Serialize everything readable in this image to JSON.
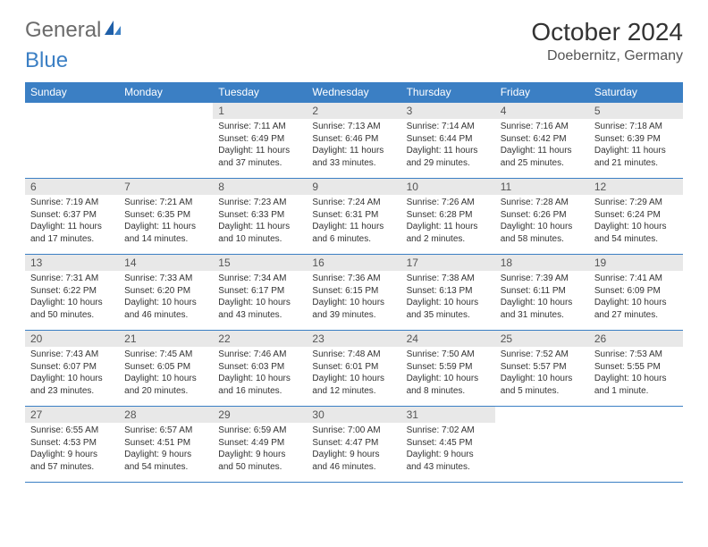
{
  "logo": {
    "text1": "General",
    "text2": "Blue"
  },
  "header": {
    "title": "October 2024",
    "location": "Doebernitz, Germany"
  },
  "colors": {
    "header_bg": "#3b7fc4",
    "header_text": "#ffffff",
    "daynum_bg": "#e8e8e8",
    "border": "#3b7fc4",
    "logo_gray": "#6b6b6b",
    "logo_blue": "#3b7fc4"
  },
  "weekdays": [
    "Sunday",
    "Monday",
    "Tuesday",
    "Wednesday",
    "Thursday",
    "Friday",
    "Saturday"
  ],
  "weeks": [
    [
      {
        "empty": true
      },
      {
        "empty": true
      },
      {
        "num": "1",
        "sunrise": "Sunrise: 7:11 AM",
        "sunset": "Sunset: 6:49 PM",
        "daylight": "Daylight: 11 hours and 37 minutes."
      },
      {
        "num": "2",
        "sunrise": "Sunrise: 7:13 AM",
        "sunset": "Sunset: 6:46 PM",
        "daylight": "Daylight: 11 hours and 33 minutes."
      },
      {
        "num": "3",
        "sunrise": "Sunrise: 7:14 AM",
        "sunset": "Sunset: 6:44 PM",
        "daylight": "Daylight: 11 hours and 29 minutes."
      },
      {
        "num": "4",
        "sunrise": "Sunrise: 7:16 AM",
        "sunset": "Sunset: 6:42 PM",
        "daylight": "Daylight: 11 hours and 25 minutes."
      },
      {
        "num": "5",
        "sunrise": "Sunrise: 7:18 AM",
        "sunset": "Sunset: 6:39 PM",
        "daylight": "Daylight: 11 hours and 21 minutes."
      }
    ],
    [
      {
        "num": "6",
        "sunrise": "Sunrise: 7:19 AM",
        "sunset": "Sunset: 6:37 PM",
        "daylight": "Daylight: 11 hours and 17 minutes."
      },
      {
        "num": "7",
        "sunrise": "Sunrise: 7:21 AM",
        "sunset": "Sunset: 6:35 PM",
        "daylight": "Daylight: 11 hours and 14 minutes."
      },
      {
        "num": "8",
        "sunrise": "Sunrise: 7:23 AM",
        "sunset": "Sunset: 6:33 PM",
        "daylight": "Daylight: 11 hours and 10 minutes."
      },
      {
        "num": "9",
        "sunrise": "Sunrise: 7:24 AM",
        "sunset": "Sunset: 6:31 PM",
        "daylight": "Daylight: 11 hours and 6 minutes."
      },
      {
        "num": "10",
        "sunrise": "Sunrise: 7:26 AM",
        "sunset": "Sunset: 6:28 PM",
        "daylight": "Daylight: 11 hours and 2 minutes."
      },
      {
        "num": "11",
        "sunrise": "Sunrise: 7:28 AM",
        "sunset": "Sunset: 6:26 PM",
        "daylight": "Daylight: 10 hours and 58 minutes."
      },
      {
        "num": "12",
        "sunrise": "Sunrise: 7:29 AM",
        "sunset": "Sunset: 6:24 PM",
        "daylight": "Daylight: 10 hours and 54 minutes."
      }
    ],
    [
      {
        "num": "13",
        "sunrise": "Sunrise: 7:31 AM",
        "sunset": "Sunset: 6:22 PM",
        "daylight": "Daylight: 10 hours and 50 minutes."
      },
      {
        "num": "14",
        "sunrise": "Sunrise: 7:33 AM",
        "sunset": "Sunset: 6:20 PM",
        "daylight": "Daylight: 10 hours and 46 minutes."
      },
      {
        "num": "15",
        "sunrise": "Sunrise: 7:34 AM",
        "sunset": "Sunset: 6:17 PM",
        "daylight": "Daylight: 10 hours and 43 minutes."
      },
      {
        "num": "16",
        "sunrise": "Sunrise: 7:36 AM",
        "sunset": "Sunset: 6:15 PM",
        "daylight": "Daylight: 10 hours and 39 minutes."
      },
      {
        "num": "17",
        "sunrise": "Sunrise: 7:38 AM",
        "sunset": "Sunset: 6:13 PM",
        "daylight": "Daylight: 10 hours and 35 minutes."
      },
      {
        "num": "18",
        "sunrise": "Sunrise: 7:39 AM",
        "sunset": "Sunset: 6:11 PM",
        "daylight": "Daylight: 10 hours and 31 minutes."
      },
      {
        "num": "19",
        "sunrise": "Sunrise: 7:41 AM",
        "sunset": "Sunset: 6:09 PM",
        "daylight": "Daylight: 10 hours and 27 minutes."
      }
    ],
    [
      {
        "num": "20",
        "sunrise": "Sunrise: 7:43 AM",
        "sunset": "Sunset: 6:07 PM",
        "daylight": "Daylight: 10 hours and 23 minutes."
      },
      {
        "num": "21",
        "sunrise": "Sunrise: 7:45 AM",
        "sunset": "Sunset: 6:05 PM",
        "daylight": "Daylight: 10 hours and 20 minutes."
      },
      {
        "num": "22",
        "sunrise": "Sunrise: 7:46 AM",
        "sunset": "Sunset: 6:03 PM",
        "daylight": "Daylight: 10 hours and 16 minutes."
      },
      {
        "num": "23",
        "sunrise": "Sunrise: 7:48 AM",
        "sunset": "Sunset: 6:01 PM",
        "daylight": "Daylight: 10 hours and 12 minutes."
      },
      {
        "num": "24",
        "sunrise": "Sunrise: 7:50 AM",
        "sunset": "Sunset: 5:59 PM",
        "daylight": "Daylight: 10 hours and 8 minutes."
      },
      {
        "num": "25",
        "sunrise": "Sunrise: 7:52 AM",
        "sunset": "Sunset: 5:57 PM",
        "daylight": "Daylight: 10 hours and 5 minutes."
      },
      {
        "num": "26",
        "sunrise": "Sunrise: 7:53 AM",
        "sunset": "Sunset: 5:55 PM",
        "daylight": "Daylight: 10 hours and 1 minute."
      }
    ],
    [
      {
        "num": "27",
        "sunrise": "Sunrise: 6:55 AM",
        "sunset": "Sunset: 4:53 PM",
        "daylight": "Daylight: 9 hours and 57 minutes."
      },
      {
        "num": "28",
        "sunrise": "Sunrise: 6:57 AM",
        "sunset": "Sunset: 4:51 PM",
        "daylight": "Daylight: 9 hours and 54 minutes."
      },
      {
        "num": "29",
        "sunrise": "Sunrise: 6:59 AM",
        "sunset": "Sunset: 4:49 PM",
        "daylight": "Daylight: 9 hours and 50 minutes."
      },
      {
        "num": "30",
        "sunrise": "Sunrise: 7:00 AM",
        "sunset": "Sunset: 4:47 PM",
        "daylight": "Daylight: 9 hours and 46 minutes."
      },
      {
        "num": "31",
        "sunrise": "Sunrise: 7:02 AM",
        "sunset": "Sunset: 4:45 PM",
        "daylight": "Daylight: 9 hours and 43 minutes."
      },
      {
        "empty": true
      },
      {
        "empty": true
      }
    ]
  ]
}
